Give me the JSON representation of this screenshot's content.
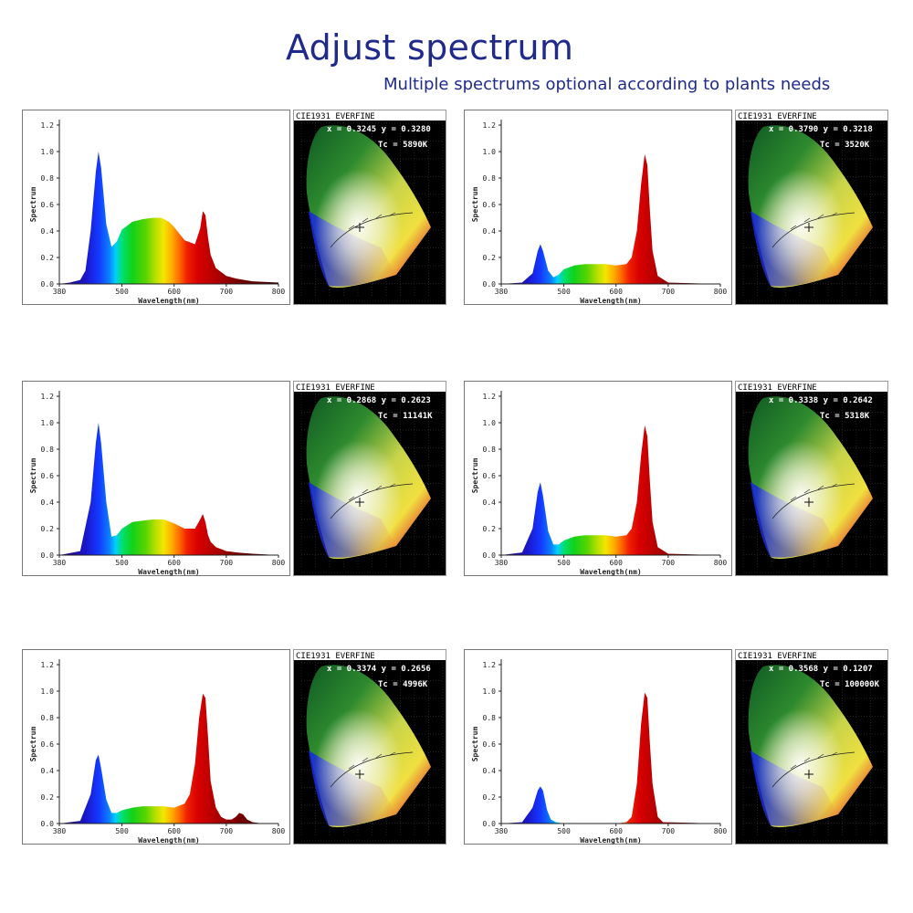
{
  "header": {
    "title": "Adjust spectrum",
    "subtitle": "Multiple spectrums optional according to plants needs"
  },
  "chart_data": [
    {
      "type": "area",
      "xlabel": "Wavelength(nm)",
      "ylabel": "Spectrum",
      "xlim": [
        380,
        800
      ],
      "ylim": [
        0,
        1.2
      ],
      "xticks": [
        380,
        500,
        600,
        700,
        800
      ],
      "yticks": [
        0.0,
        0.2,
        0.4,
        0.6,
        0.8,
        1.0,
        1.2
      ],
      "x": [
        380,
        400,
        420,
        430,
        440,
        450,
        455,
        460,
        470,
        480,
        490,
        500,
        520,
        540,
        560,
        575,
        590,
        600,
        620,
        640,
        650,
        655,
        660,
        665,
        670,
        680,
        700,
        720,
        750,
        800
      ],
      "y": [
        0,
        0.01,
        0.03,
        0.1,
        0.4,
        0.85,
        1.0,
        0.88,
        0.45,
        0.28,
        0.32,
        0.41,
        0.47,
        0.49,
        0.5,
        0.5,
        0.47,
        0.43,
        0.33,
        0.3,
        0.42,
        0.55,
        0.52,
        0.35,
        0.22,
        0.12,
        0.06,
        0.04,
        0.02,
        0.01
      ],
      "cie": {
        "title": "CIE1931 EVERFINE",
        "coords": "x = 0.3245  y = 0.3280",
        "tc": "Tc = 5890K"
      }
    },
    {
      "type": "area",
      "xlabel": "Wavelength(nm)",
      "ylabel": "Spectrum",
      "xlim": [
        380,
        800
      ],
      "ylim": [
        0,
        1.2
      ],
      "xticks": [
        380,
        500,
        600,
        700,
        800
      ],
      "yticks": [
        0.0,
        0.2,
        0.4,
        0.6,
        0.8,
        1.0,
        1.2
      ],
      "x": [
        380,
        420,
        440,
        450,
        455,
        460,
        470,
        480,
        490,
        500,
        520,
        540,
        560,
        580,
        600,
        620,
        630,
        640,
        648,
        655,
        660,
        665,
        670,
        680,
        700,
        800
      ],
      "y": [
        0,
        0.01,
        0.08,
        0.25,
        0.3,
        0.25,
        0.1,
        0.05,
        0.07,
        0.11,
        0.14,
        0.15,
        0.15,
        0.15,
        0.14,
        0.15,
        0.2,
        0.4,
        0.75,
        0.98,
        0.9,
        0.55,
        0.25,
        0.06,
        0.01,
        0
      ],
      "cie": {
        "title": "CIE1931 EVERFINE",
        "coords": "x = 0.3790  y = 0.3218",
        "tc": "Tc = 3520K"
      }
    },
    {
      "type": "area",
      "xlabel": "Wavelength(nm)",
      "ylabel": "Spectrum",
      "xlim": [
        380,
        800
      ],
      "ylim": [
        0,
        1.2
      ],
      "xticks": [
        380,
        500,
        600,
        700,
        800
      ],
      "yticks": [
        0.0,
        0.2,
        0.4,
        0.6,
        0.8,
        1.0,
        1.2
      ],
      "x": [
        380,
        420,
        440,
        450,
        455,
        460,
        470,
        480,
        490,
        500,
        520,
        540,
        560,
        580,
        600,
        620,
        640,
        650,
        655,
        660,
        665,
        670,
        680,
        700,
        720,
        750,
        800
      ],
      "y": [
        0,
        0.03,
        0.4,
        0.85,
        1.0,
        0.85,
        0.4,
        0.14,
        0.15,
        0.2,
        0.25,
        0.26,
        0.27,
        0.27,
        0.24,
        0.2,
        0.2,
        0.27,
        0.31,
        0.25,
        0.15,
        0.1,
        0.06,
        0.03,
        0.02,
        0.01,
        0
      ],
      "cie": {
        "title": "CIE1931 EVERFINE",
        "coords": "x = 0.2868  y = 0.2623",
        "tc": "Tc = 11141K"
      }
    },
    {
      "type": "area",
      "xlabel": "Wavelength(nm)",
      "ylabel": "Spectrum",
      "xlim": [
        380,
        800
      ],
      "ylim": [
        0,
        1.2
      ],
      "xticks": [
        380,
        500,
        600,
        700,
        800
      ],
      "yticks": [
        0.0,
        0.2,
        0.4,
        0.6,
        0.8,
        1.0,
        1.2
      ],
      "x": [
        380,
        420,
        440,
        450,
        455,
        460,
        470,
        480,
        490,
        500,
        520,
        540,
        560,
        580,
        600,
        620,
        630,
        640,
        648,
        655,
        660,
        665,
        670,
        680,
        700,
        800
      ],
      "y": [
        0,
        0.02,
        0.2,
        0.48,
        0.55,
        0.45,
        0.18,
        0.08,
        0.08,
        0.11,
        0.14,
        0.15,
        0.15,
        0.15,
        0.14,
        0.15,
        0.2,
        0.4,
        0.75,
        0.98,
        0.9,
        0.55,
        0.25,
        0.06,
        0.01,
        0
      ],
      "cie": {
        "title": "CIE1931 EVERFINE",
        "coords": "x = 0.3338  y = 0.2642",
        "tc": "Tc = 5318K"
      }
    },
    {
      "type": "area",
      "xlabel": "Wavelength(nm)",
      "ylabel": "Spectrum",
      "xlim": [
        380,
        800
      ],
      "ylim": [
        0,
        1.2
      ],
      "xticks": [
        380,
        500,
        600,
        700,
        800
      ],
      "yticks": [
        0.0,
        0.2,
        0.4,
        0.6,
        0.8,
        1.0,
        1.2
      ],
      "x": [
        380,
        420,
        440,
        450,
        455,
        460,
        470,
        480,
        490,
        500,
        520,
        540,
        560,
        580,
        600,
        620,
        630,
        640,
        648,
        655,
        660,
        665,
        670,
        680,
        690,
        700,
        710,
        718,
        725,
        732,
        740,
        750,
        770,
        800
      ],
      "y": [
        0,
        0.02,
        0.22,
        0.48,
        0.52,
        0.42,
        0.18,
        0.08,
        0.08,
        0.1,
        0.12,
        0.13,
        0.13,
        0.13,
        0.12,
        0.15,
        0.22,
        0.45,
        0.8,
        0.98,
        0.95,
        0.65,
        0.32,
        0.12,
        0.05,
        0.03,
        0.03,
        0.05,
        0.08,
        0.07,
        0.03,
        0.01,
        0,
        0
      ],
      "cie": {
        "title": "CIE1931 EVERFINE",
        "coords": "x = 0.3374  y = 0.2656",
        "tc": "Tc = 4996K"
      }
    },
    {
      "type": "area",
      "xlabel": "Wavelength(nm)",
      "ylabel": "Spectrum",
      "xlim": [
        380,
        800
      ],
      "ylim": [
        0,
        1.2
      ],
      "xticks": [
        380,
        500,
        600,
        700,
        800
      ],
      "yticks": [
        0.0,
        0.2,
        0.4,
        0.6,
        0.8,
        1.0,
        1.2
      ],
      "x": [
        380,
        420,
        440,
        450,
        455,
        460,
        468,
        475,
        485,
        500,
        600,
        620,
        630,
        640,
        648,
        655,
        660,
        665,
        670,
        680,
        690,
        800
      ],
      "y": [
        0,
        0.01,
        0.12,
        0.25,
        0.28,
        0.25,
        0.1,
        0.03,
        0.01,
        0,
        0,
        0.01,
        0.05,
        0.3,
        0.75,
        0.99,
        0.95,
        0.6,
        0.3,
        0.05,
        0.01,
        0
      ],
      "cie": {
        "title": "CIE1931 EVERFINE",
        "coords": "x = 0.3568  y = 0.1207",
        "tc": "Tc = 100000K"
      }
    }
  ]
}
